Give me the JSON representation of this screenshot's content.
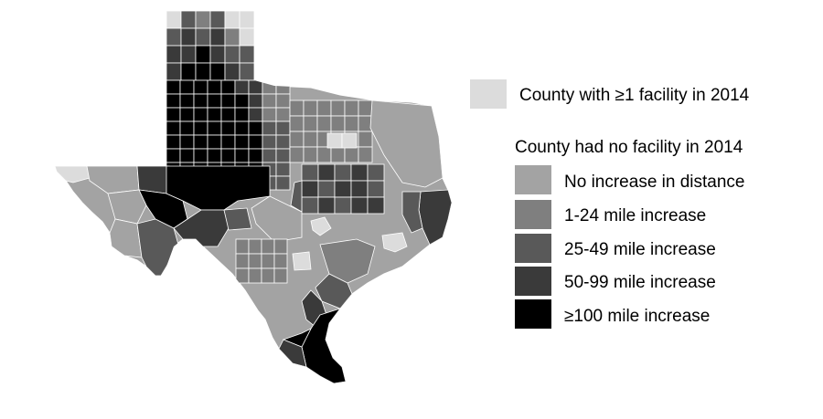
{
  "legend": {
    "facility_label": "County with ≥1 facility in 2014",
    "heading": "County had no facility in 2014",
    "categories": [
      {
        "label": "No increase in distance",
        "color": "#a3a3a3"
      },
      {
        "label": "1-24 mile increase",
        "color": "#7f7f7f"
      },
      {
        "label": "25-49 mile increase",
        "color": "#595959"
      },
      {
        "label": "50-99 mile increase",
        "color": "#3a3a3a"
      },
      {
        "label": "≥100 mile increase",
        "color": "#000000"
      }
    ],
    "facility_color": "#dcdcdc"
  },
  "map": {
    "region": "Texas counties",
    "border_color": "#ffffff"
  }
}
